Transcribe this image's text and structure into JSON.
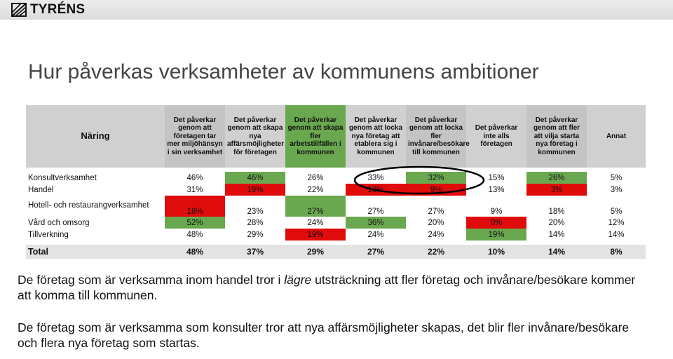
{
  "logo": {
    "text": "TYRÉNS"
  },
  "title": "Hur påverkas verksamheter av kommunens ambitioner",
  "table": {
    "row_header": "Näring",
    "columns": [
      "Det påverkar genom att företagen tar mer miljöhänsyn i sin verksamhet",
      "Det påverkar genom att skapa nya affärsmöjligheter för företagen",
      "Det påverkar genom att skapa fler arbetstillfällen i kommunen",
      "Det påverkar genom att locka nya företag att etablera sig i kommunen",
      "Det påverkar genom att locka fler invånare/besökare till kommunen",
      "Det påverkar inte alls företagen",
      "Det påverkar genom att fler att vilja starta nya företag i kommunen",
      "Annat"
    ],
    "rows": [
      {
        "label": "Konsultverksamhet",
        "values": [
          "46%",
          "46%",
          "26%",
          "33%",
          "32%",
          "15%",
          "26%",
          "5%"
        ],
        "highlight": [
          "none",
          "green",
          "none",
          "none",
          "green",
          "none",
          "green",
          "none"
        ]
      },
      {
        "label": "Handel",
        "values": [
          "31%",
          "19%",
          "22%",
          "13%",
          "9%",
          "13%",
          "3%",
          "3%"
        ],
        "highlight": [
          "none",
          "red",
          "none",
          "red",
          "red",
          "none",
          "red",
          "none"
        ]
      },
      {
        "label": "Hotell- och restaurangverksamhet",
        "values": [
          "18%",
          "23%",
          "27%",
          "27%",
          "27%",
          "9%",
          "18%",
          "5%"
        ],
        "highlight": [
          "red",
          "none",
          "green",
          "none",
          "none",
          "none",
          "none",
          "none"
        ]
      },
      {
        "label": "Vård och omsorg",
        "values": [
          "52%",
          "28%",
          "24%",
          "36%",
          "20%",
          "0%",
          "20%",
          "12%"
        ],
        "highlight": [
          "green",
          "none",
          "none",
          "green",
          "none",
          "red",
          "none",
          "none"
        ]
      },
      {
        "label": "Tillverkning",
        "values": [
          "48%",
          "29%",
          "19%",
          "24%",
          "24%",
          "19%",
          "14%",
          "14%"
        ],
        "highlight": [
          "none",
          "none",
          "red",
          "none",
          "none",
          "green",
          "none",
          "none"
        ]
      }
    ],
    "total": {
      "label": "Total",
      "values": [
        "48%",
        "37%",
        "29%",
        "27%",
        "22%",
        "10%",
        "14%",
        "8%"
      ]
    }
  },
  "paragraphs": {
    "p1_before": "De företag som är verksamma inom handel tror i ",
    "p1_emph": "lägre",
    "p1_after": " utsträckning att fler företag och invånare/besökare kommer att komma till kommunen.",
    "p2": "De företag som är verksamma som konsulter tror att nya affärsmöjligheter skapas, det blir fler invånare/besökare och flera nya företag som startas."
  },
  "colors": {
    "green": "#6aa84f",
    "red": "#e00b0b",
    "header": "#d0d0d0",
    "total": "#e3e3e3",
    "annotation": "#000000"
  }
}
